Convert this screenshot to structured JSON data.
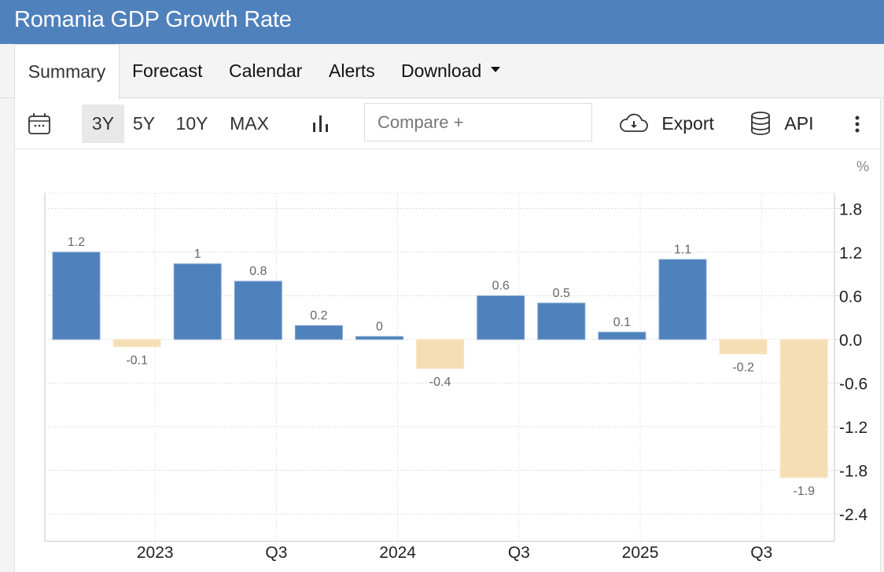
{
  "header": {
    "title": "Romania GDP Growth Rate"
  },
  "tabs": [
    {
      "label": "Summary",
      "active": true
    },
    {
      "label": "Forecast",
      "active": false
    },
    {
      "label": "Calendar",
      "active": false
    },
    {
      "label": "Alerts",
      "active": false
    },
    {
      "label": "Download",
      "active": false,
      "has_dropdown": true
    }
  ],
  "toolbar": {
    "calendar_icon": "calendar-icon",
    "ranges": [
      {
        "label": "3Y",
        "active": true
      },
      {
        "label": "5Y",
        "active": false
      },
      {
        "label": "10Y",
        "active": false
      },
      {
        "label": "MAX",
        "active": false
      }
    ],
    "chart_type_icon": "bar-chart-icon",
    "compare_placeholder": "Compare +",
    "export_label": "Export",
    "export_icon": "cloud-download-icon",
    "api_label": "API",
    "api_icon": "database-icon",
    "more_icon": "more-vertical-icon"
  },
  "colors": {
    "header_bg": "#4f81bd",
    "positive_bar": "#4f81bd",
    "negative_bar": "#f5deb3"
  },
  "chart_data": {
    "type": "bar",
    "title": "Romania GDP Growth Rate",
    "unit_label": "%",
    "values": [
      1.2,
      -0.1,
      1,
      0.8,
      0.2,
      0,
      -0.4,
      0.6,
      0.5,
      0.1,
      1.1,
      -0.2,
      -1.9
    ],
    "display_values": [
      1.2,
      -0.1,
      1.04,
      0.8,
      0.19,
      0.04,
      -0.4,
      0.6,
      0.5,
      0.1,
      1.1,
      -0.2,
      -1.9
    ],
    "data_labels": [
      "1.2",
      "-0.1",
      "1",
      "0.8",
      "0.2",
      "0",
      "-0.4",
      "0.6",
      "0.5",
      "0.1",
      "1.1",
      "-0.2",
      "-1.9"
    ],
    "x_tick_labels": [
      "2023",
      "Q3",
      "2024",
      "Q3",
      "2025",
      "Q3"
    ],
    "x_tick_bar_positions": [
      1.3,
      3.3,
      5.3,
      7.3,
      9.3,
      11.3
    ],
    "y_ticks": [
      1.8,
      1.2,
      0.6,
      0.0,
      -0.6,
      -1.2,
      -1.8,
      -2.4
    ],
    "y_tick_labels": [
      "1.8",
      "1.2",
      "0.6",
      "0.0",
      "-0.6",
      "-1.2",
      "-1.8",
      "-2.4"
    ],
    "ylim": [
      -2.8,
      2.0
    ],
    "y_axis_position": "right",
    "grid": true,
    "legend": "none"
  }
}
